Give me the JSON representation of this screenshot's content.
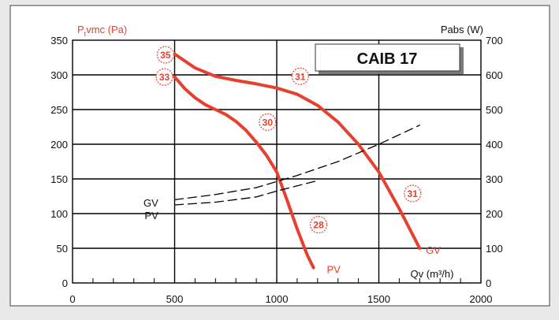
{
  "chart_data": {
    "type": "line",
    "title": "CAIB 17",
    "ylabel_left_prefix": "P",
    "ylabel_left_sub": "t",
    "ylabel_left_suffix": "vmc (Pa)",
    "ylabel_right": "Pabs (W)",
    "xlabel": "Qv (m³/h)",
    "xlim": [
      0,
      2000
    ],
    "ylim_left": [
      0,
      350
    ],
    "ylim_right": [
      0,
      700
    ],
    "x_ticks": [
      "0",
      "500",
      "1000",
      "1500",
      "2000"
    ],
    "y_left_ticks": [
      "0",
      "50",
      "100",
      "150",
      "200",
      "250",
      "300",
      "350"
    ],
    "y_right_ticks": [
      "0",
      "100",
      "200",
      "300",
      "400",
      "500",
      "600",
      "700"
    ],
    "grid": "major lines bold, minor x ticks every 100",
    "colors": {
      "pressure": "#e8402f",
      "power": "#000000",
      "accent_text": "#e8402f"
    },
    "series": [
      {
        "name": "GV",
        "axis": "left",
        "style": "solid-red",
        "x": [
          500,
          550,
          600,
          700,
          800,
          900,
          1000,
          1100,
          1200,
          1300,
          1400,
          1500,
          1600,
          1700
        ],
        "y": [
          330,
          320,
          310,
          298,
          292,
          287,
          281,
          272,
          256,
          232,
          200,
          160,
          107,
          50
        ]
      },
      {
        "name": "PV",
        "axis": "left",
        "style": "solid-red",
        "x": [
          500,
          550,
          600,
          650,
          700,
          750,
          800,
          850,
          900,
          950,
          1000,
          1050,
          1100,
          1150,
          1180
        ],
        "y": [
          297,
          280,
          267,
          257,
          250,
          243,
          233,
          220,
          203,
          184,
          160,
          120,
          78,
          40,
          22
        ]
      },
      {
        "name": "GV",
        "axis": "right",
        "style": "dashed-black",
        "x": [
          500,
          700,
          900,
          1100,
          1300,
          1500,
          1700
        ],
        "y": [
          240,
          255,
          275,
          310,
          350,
          400,
          455
        ]
      },
      {
        "name": "PV",
        "axis": "right",
        "style": "dashed-black",
        "x": [
          500,
          700,
          900,
          1000,
          1100,
          1200
        ],
        "y": [
          225,
          233,
          248,
          265,
          280,
          295
        ]
      }
    ],
    "annotations": [
      {
        "text": "35",
        "x": 455,
        "y": 329
      },
      {
        "text": "33",
        "x": 450,
        "y": 297
      },
      {
        "text": "30",
        "x": 955,
        "y": 232
      },
      {
        "text": "31",
        "x": 1115,
        "y": 298
      },
      {
        "text": "31",
        "x": 1665,
        "y": 129
      },
      {
        "text": "28",
        "x": 1205,
        "y": 84
      }
    ],
    "series_labels": [
      {
        "text": "GV",
        "color": "black",
        "x": 420,
        "y": 116
      },
      {
        "text": "PV",
        "color": "black",
        "x": 420,
        "y": 98
      },
      {
        "text": "GV",
        "color": "red",
        "x": 1730,
        "y": 48
      },
      {
        "text": "PV",
        "color": "red",
        "x": 1245,
        "y": 20
      }
    ]
  }
}
